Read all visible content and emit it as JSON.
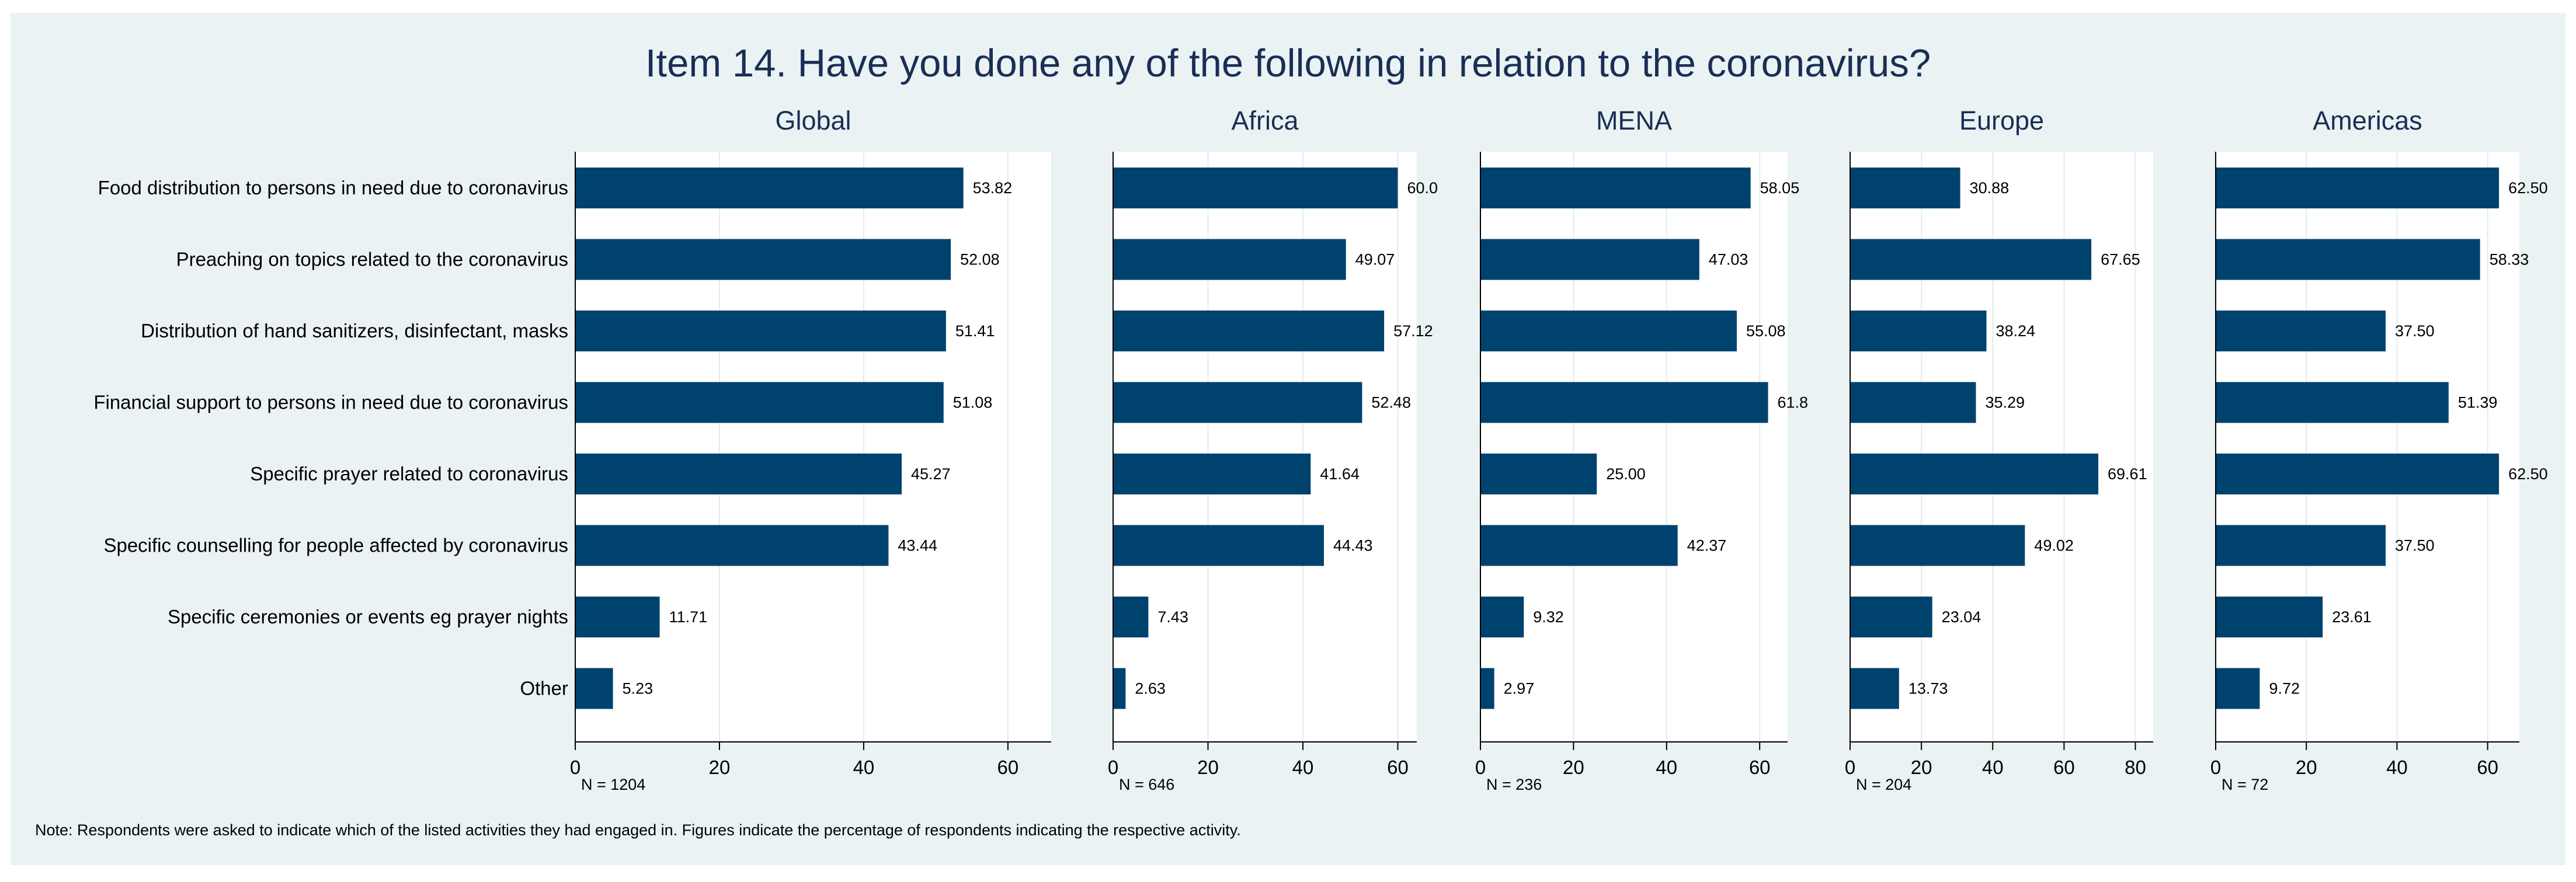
{
  "chart_data": {
    "type": "bar",
    "orientation": "horizontal",
    "title": "Item 14. Have you done any of the following in relation to the coronavirus?",
    "note": "Note: Respondents were asked to indicate which of the listed activities they had engaged in. Figures indicate the percentage of respondents indicating the respective activity.",
    "categories": [
      "Food distribution to persons in need due to coronavirus",
      "Preaching on topics related to the coronavirus",
      "Distribution of hand sanitizers, disinfectant, masks",
      "Financial support to persons in need due to coronavirus",
      "Specific prayer related to coronavirus",
      "Specific counselling for people affected by coronavirus",
      "Specific ceremonies or events eg prayer nights",
      "Other"
    ],
    "panels": [
      {
        "name": "Global",
        "n_label": "N = 1204",
        "xlim": [
          0,
          66
        ],
        "ticks": [
          "0",
          "20",
          "40",
          "60"
        ],
        "values": [
          53.82,
          52.08,
          51.41,
          51.08,
          45.27,
          43.44,
          11.71,
          5.23
        ],
        "labels": [
          "53.82",
          "52.08",
          "51.41",
          "51.08",
          "45.27",
          "43.44",
          "11.71",
          "5.23"
        ]
      },
      {
        "name": "Africa",
        "n_label": "N = 646",
        "xlim": [
          0,
          64
        ],
        "ticks": [
          "0",
          "20",
          "40",
          "60"
        ],
        "values": [
          60.0,
          49.07,
          57.12,
          52.48,
          41.64,
          44.43,
          7.43,
          2.63
        ],
        "labels": [
          "60.0",
          "49.07",
          "57.12",
          "52.48",
          "41.64",
          "44.43",
          "7.43",
          "2.63"
        ]
      },
      {
        "name": "MENA",
        "n_label": "N = 236",
        "xlim": [
          0,
          66
        ],
        "ticks": [
          "0",
          "20",
          "40",
          "60"
        ],
        "values": [
          58.05,
          47.03,
          55.08,
          61.8,
          25.0,
          42.37,
          9.32,
          2.97
        ],
        "labels": [
          "58.05",
          "47.03",
          "55.08",
          "61.8",
          "25.00",
          "42.37",
          "9.32",
          "2.97"
        ]
      },
      {
        "name": "Europe",
        "n_label": "N = 204",
        "xlim": [
          0,
          85
        ],
        "ticks": [
          "0",
          "20",
          "40",
          "60",
          "80"
        ],
        "values": [
          30.88,
          67.65,
          38.24,
          35.29,
          69.61,
          49.02,
          23.04,
          13.73
        ],
        "labels": [
          "30.88",
          "67.65",
          "38.24",
          "35.29",
          "69.61",
          "49.02",
          "23.04",
          "13.73"
        ]
      },
      {
        "name": "Americas",
        "n_label": "N = 72",
        "xlim": [
          0,
          67
        ],
        "ticks": [
          "0",
          "20",
          "40",
          "60"
        ],
        "values": [
          62.5,
          58.33,
          37.5,
          51.39,
          62.5,
          37.5,
          23.61,
          9.72
        ],
        "labels": [
          "62.50",
          "58.33",
          "37.50",
          "51.39",
          "62.50",
          "37.50",
          "23.61",
          "9.72"
        ]
      }
    ],
    "colors": {
      "bar": "#00426e",
      "plot_bg": "#ffffff",
      "grid": "#e3ecee",
      "figure_bg": "#eaf2f3",
      "title": "#1a2e55"
    }
  }
}
